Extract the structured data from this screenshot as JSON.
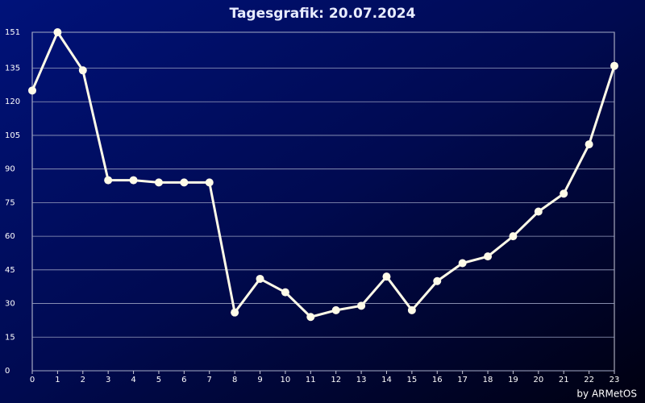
{
  "chart_data": {
    "type": "line",
    "title": "Tagesgrafik: 20.07.2024",
    "credit": "by ARMetOS",
    "x": [
      0,
      1,
      2,
      3,
      4,
      5,
      6,
      7,
      8,
      9,
      10,
      11,
      12,
      13,
      14,
      15,
      16,
      17,
      18,
      19,
      20,
      21,
      22,
      23
    ],
    "series": [
      {
        "color": "#fffbe8",
        "values": [
          125,
          151,
          134,
          85,
          85,
          84,
          84,
          84,
          26,
          41,
          35,
          24,
          27,
          29,
          42,
          27,
          40,
          48,
          51,
          60,
          71,
          79,
          101,
          136
        ]
      }
    ],
    "xlim": [
      0,
      23
    ],
    "xticks": [
      0,
      1,
      2,
      3,
      4,
      5,
      6,
      7,
      8,
      9,
      10,
      11,
      12,
      13,
      14,
      15,
      16,
      17,
      18,
      19,
      20,
      21,
      22,
      23
    ],
    "ylim": [
      0,
      151
    ],
    "yticks": [
      0,
      15,
      30,
      45,
      60,
      75,
      90,
      105,
      120,
      135,
      151
    ],
    "grid": true
  }
}
